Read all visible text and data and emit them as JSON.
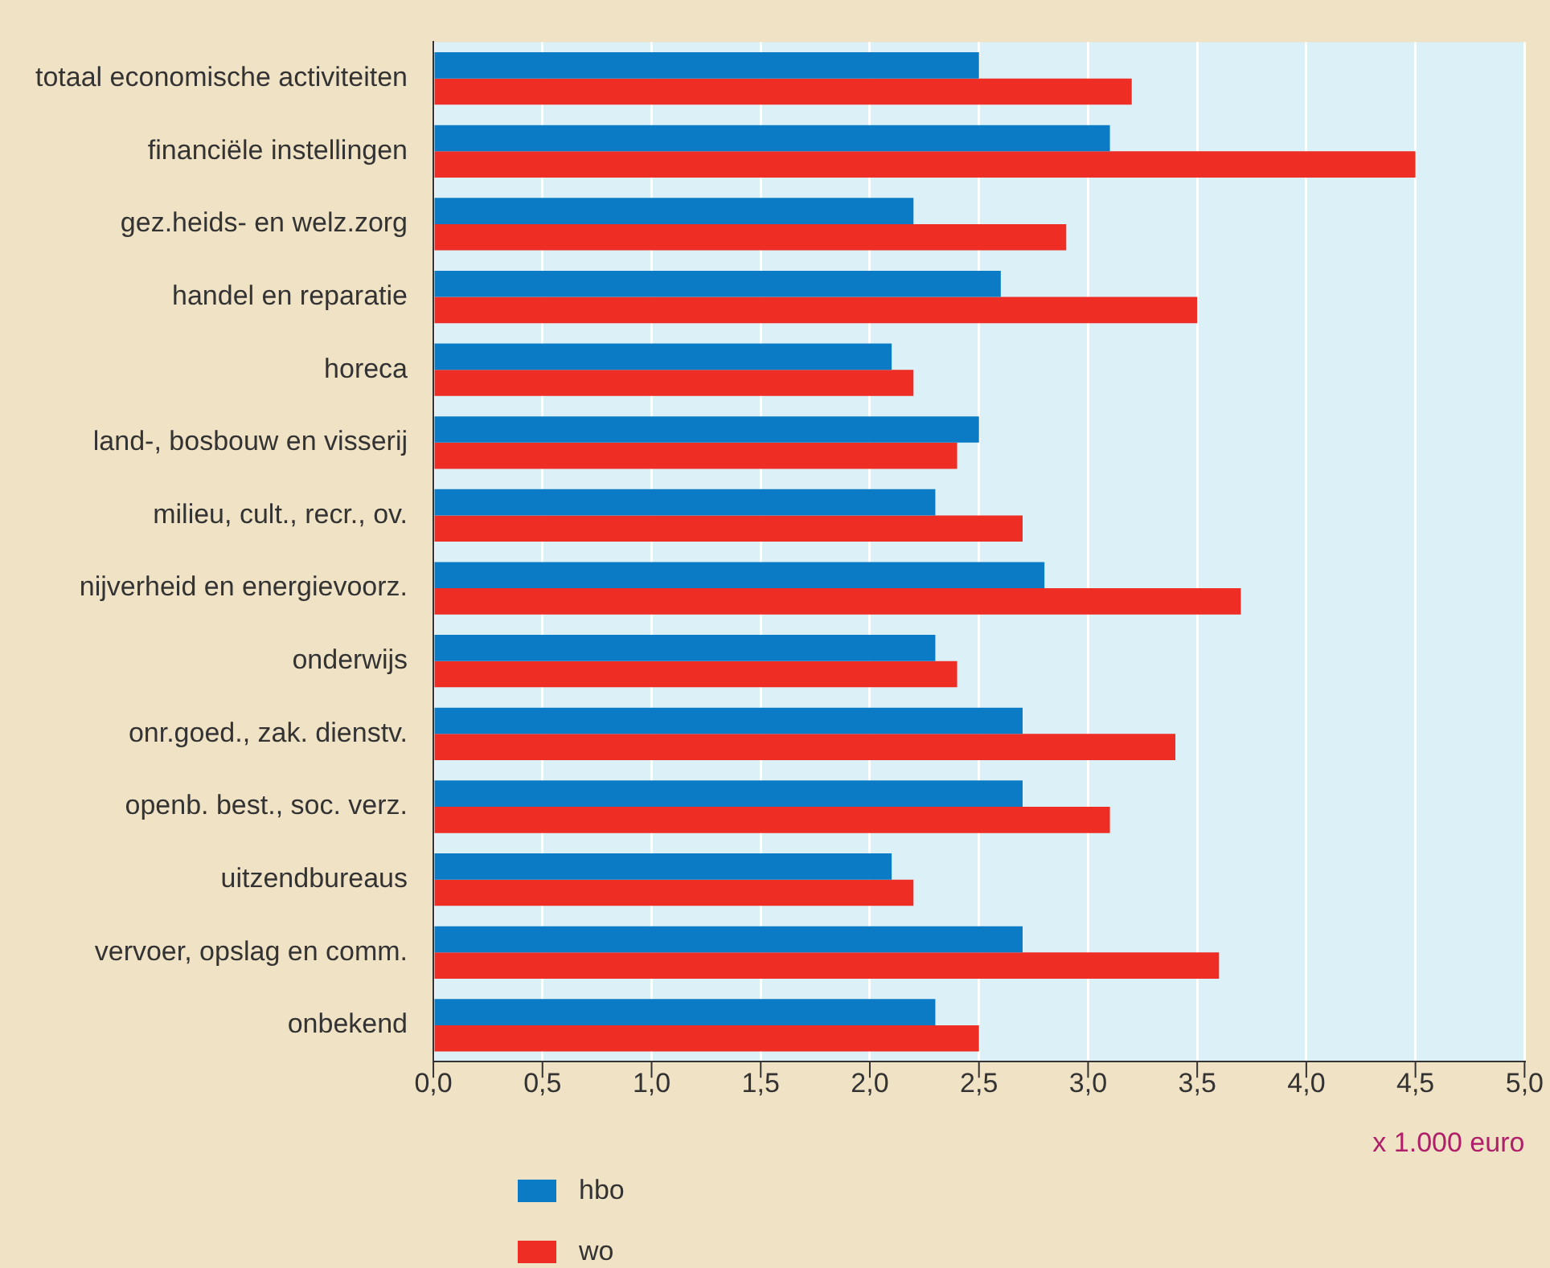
{
  "chart_data": {
    "type": "bar",
    "orientation": "horizontal",
    "categories": [
      "totaal economische activiteiten",
      "financiële instellingen",
      "gez.heids- en welz.zorg",
      "handel en reparatie",
      "horeca",
      "land-, bosbouw en visserij",
      "milieu, cult., recr., ov.",
      "nijverheid en energievoorz.",
      "onderwijs",
      "onr.goed., zak. dienstv.",
      "openb. best., soc. verz.",
      "uitzendbureaus",
      "vervoer, opslag en comm.",
      "onbekend"
    ],
    "series": [
      {
        "name": "hbo",
        "color": "#0a7bc4",
        "values": [
          2.5,
          3.1,
          2.2,
          2.6,
          2.1,
          2.5,
          2.3,
          2.8,
          2.3,
          2.7,
          2.7,
          2.1,
          2.7,
          2.3
        ]
      },
      {
        "name": "wo",
        "color": "#ee2d24",
        "values": [
          3.2,
          4.5,
          2.9,
          3.5,
          2.2,
          2.4,
          2.7,
          3.7,
          2.4,
          3.4,
          3.1,
          2.2,
          3.6,
          2.5
        ]
      }
    ],
    "xlim": [
      0,
      5
    ],
    "xticks": [
      {
        "value": 0,
        "label": "0,0"
      },
      {
        "value": 0.5,
        "label": "0,5"
      },
      {
        "value": 1,
        "label": "1,0"
      },
      {
        "value": 1.5,
        "label": "1,5"
      },
      {
        "value": 2,
        "label": "2,0"
      },
      {
        "value": 2.5,
        "label": "2,5"
      },
      {
        "value": 3,
        "label": "3,0"
      },
      {
        "value": 3.5,
        "label": "3,5"
      },
      {
        "value": 4,
        "label": "4,0"
      },
      {
        "value": 4.5,
        "label": "4,5"
      },
      {
        "value": 5,
        "label": "5,0"
      }
    ],
    "annotations": [
      "x 1.000 euro"
    ],
    "grid": "x",
    "legend": "bottom left"
  }
}
